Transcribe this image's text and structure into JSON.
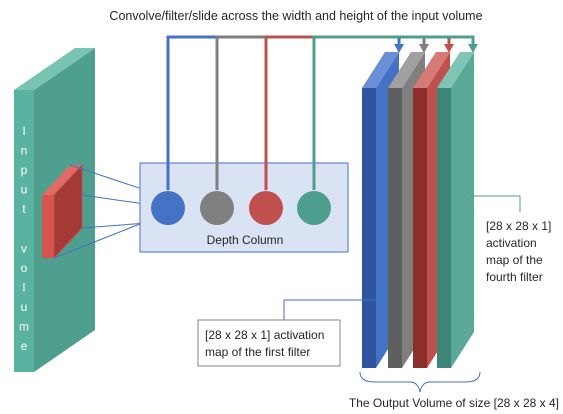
{
  "title": "Convolve/filter/slide across the width and height of the input volume",
  "input_label": "Input volume",
  "depth_column": "Depth Column",
  "callout_first": [
    "[28 x 28 x 1] activation",
    "map of the first filter"
  ],
  "callout_fourth": [
    "[28 x 28 x 1]",
    "activation",
    "map of the",
    "fourth filter"
  ],
  "output_label": "The Output Volume of size [28 x 28 x 4]"
}
